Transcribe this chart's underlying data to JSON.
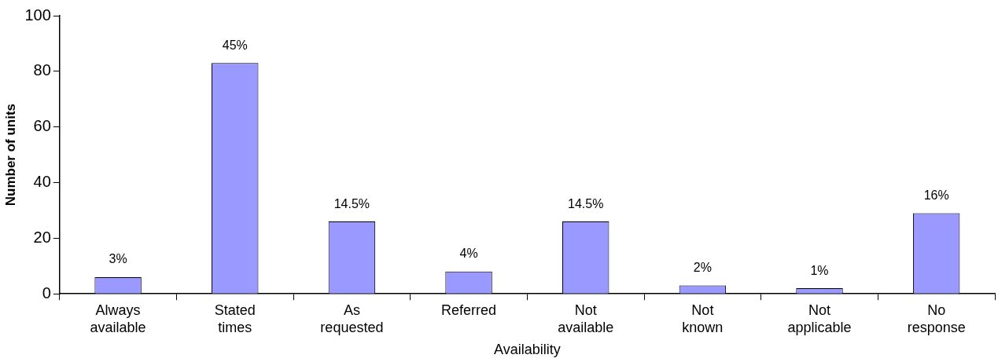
{
  "chart_data": {
    "type": "bar",
    "xlabel": "Availability",
    "ylabel": "Number of units",
    "categories": [
      "Always available",
      "Stated times",
      "As requested",
      "Referred",
      "Not available",
      "Not known",
      "Not applicable",
      "No response"
    ],
    "values": [
      6,
      83,
      26,
      8,
      26,
      3,
      2,
      29
    ],
    "annotations": [
      {
        "text": "3%",
        "x": "Always available",
        "y": 6
      },
      {
        "text": "45%",
        "x": "Stated times",
        "y": 83
      },
      {
        "text": "14.5%",
        "x": "As requested",
        "y": 26
      },
      {
        "text": "4%",
        "x": "Referred",
        "y": 8
      },
      {
        "text": "14.5%",
        "x": "Not available",
        "y": 26
      },
      {
        "text": "2%",
        "x": "Not known",
        "y": 3
      },
      {
        "text": "1%",
        "x": "Not applicable",
        "y": 2
      },
      {
        "text": "16%",
        "x": "No response",
        "y": 29
      }
    ],
    "color": "#9999ff",
    "ylim": [
      0,
      100
    ],
    "yticks": [
      0,
      20,
      40,
      60,
      80,
      100
    ],
    "grid": false,
    "legend": false
  }
}
